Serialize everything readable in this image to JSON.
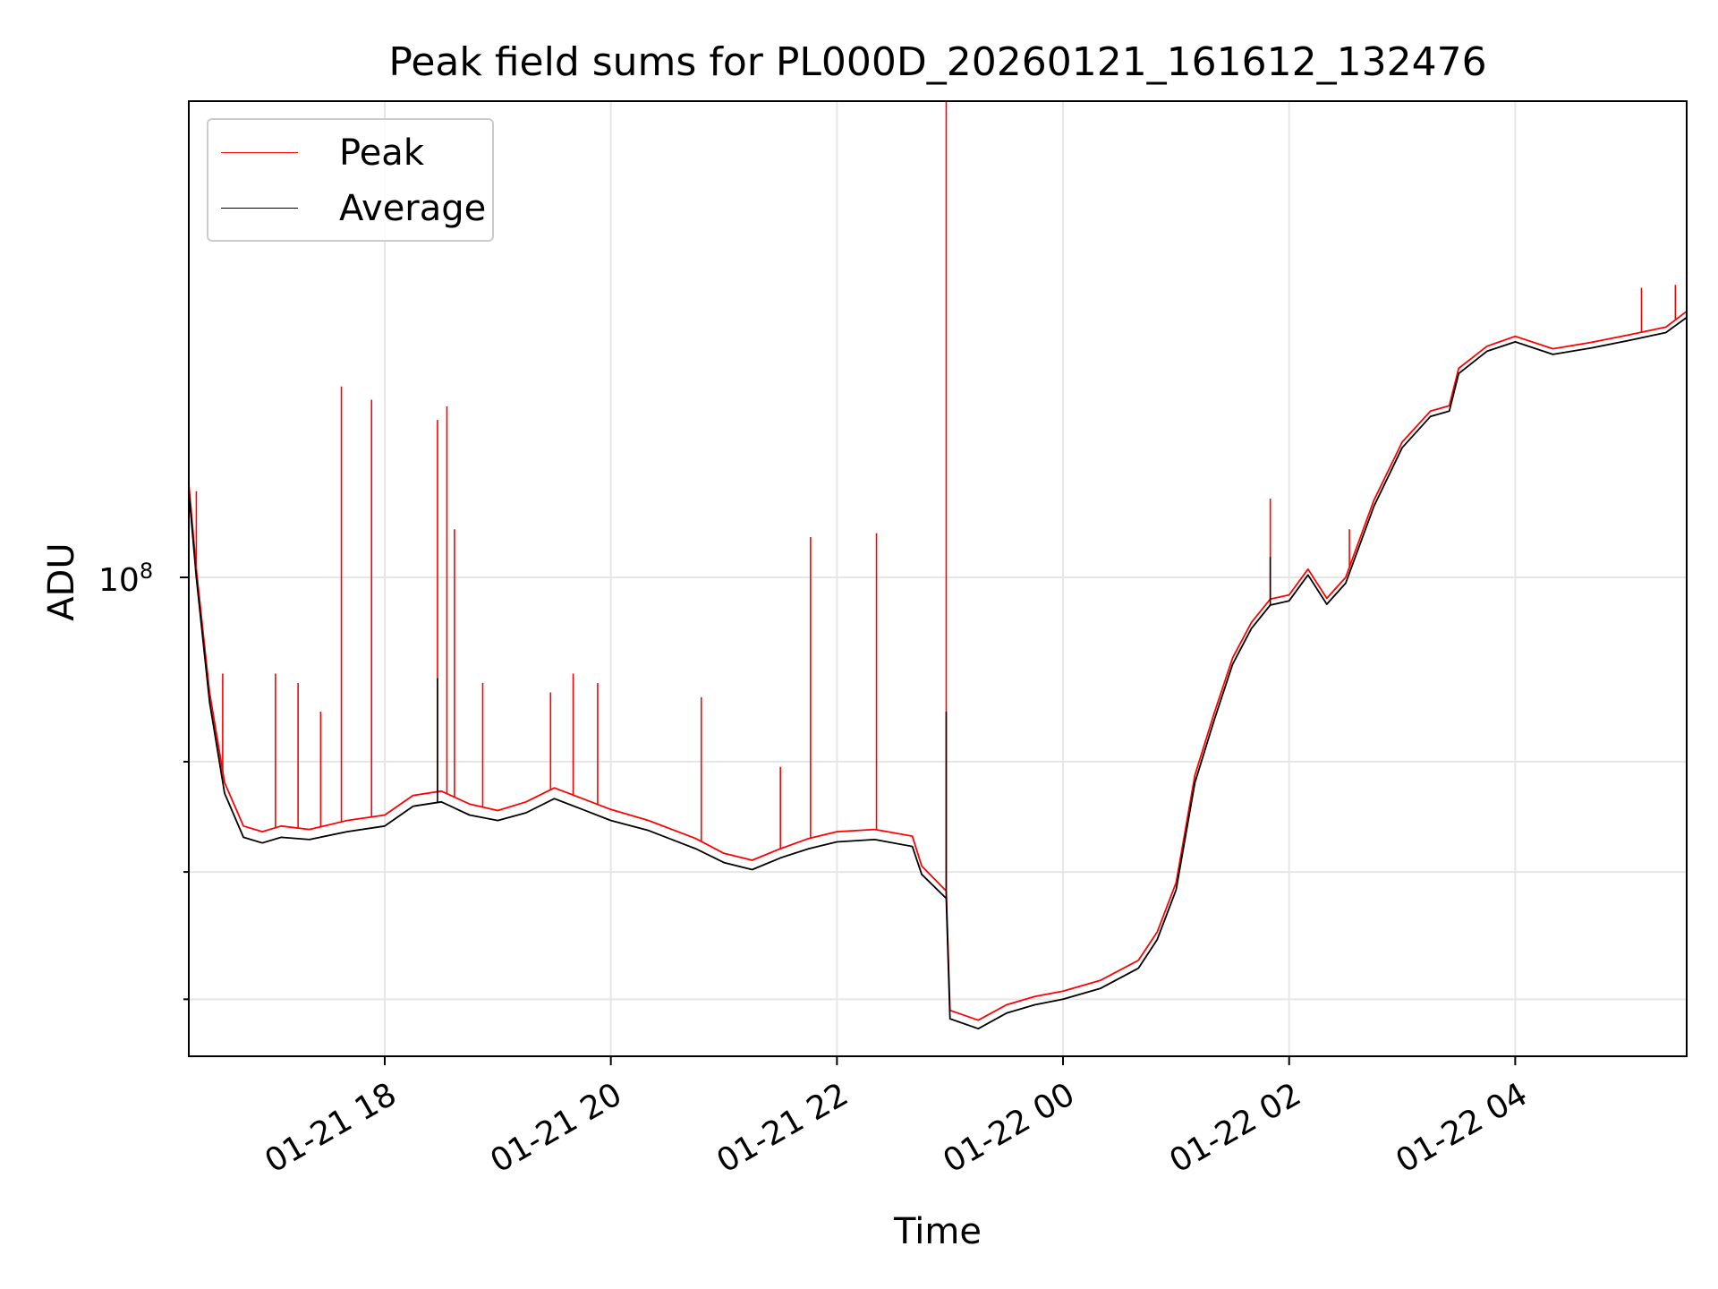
{
  "chart_data": {
    "type": "line",
    "title": "Peak field sums for PL000D_20260121_161612_132476",
    "xlabel": "Time",
    "ylabel": "ADU",
    "yscale": "log",
    "xlim": [
      "2026-01-21 16:16",
      "2026-01-22 05:31"
    ],
    "ylim": [
      56000000,
      178000000
    ],
    "x_ticks": [
      "01-21 18",
      "01-21 20",
      "01-21 22",
      "01-22 00",
      "01-22 02",
      "01-22 04"
    ],
    "y_ticks": [
      {
        "value": 100000000,
        "base": "10",
        "exponent": "8"
      }
    ],
    "grid": true,
    "legend_position": "upper left",
    "colors": {
      "Peak": "#ff0000",
      "Average": "#000000"
    },
    "series": [
      {
        "name": "Average",
        "x": [
          "2026-01-21 16:16",
          "2026-01-21 16:20",
          "2026-01-21 16:27",
          "2026-01-21 16:35",
          "2026-01-21 16:45",
          "2026-01-21 16:55",
          "2026-01-21 17:05",
          "2026-01-21 17:20",
          "2026-01-21 17:40",
          "2026-01-21 18:00",
          "2026-01-21 18:15",
          "2026-01-21 18:30",
          "2026-01-21 18:45",
          "2026-01-21 19:00",
          "2026-01-21 19:15",
          "2026-01-21 19:30",
          "2026-01-21 19:45",
          "2026-01-21 20:00",
          "2026-01-21 20:20",
          "2026-01-21 20:45",
          "2026-01-21 21:00",
          "2026-01-21 21:15",
          "2026-01-21 21:30",
          "2026-01-21 21:45",
          "2026-01-21 22:00",
          "2026-01-21 22:20",
          "2026-01-21 22:40",
          "2026-01-21 22:45",
          "2026-01-21 22:58",
          "2026-01-21 23:00",
          "2026-01-21 23:15",
          "2026-01-21 23:30",
          "2026-01-21 23:45",
          "2026-01-22 00:00",
          "2026-01-22 00:20",
          "2026-01-22 00:40",
          "2026-01-22 00:50",
          "2026-01-22 01:00",
          "2026-01-22 01:10",
          "2026-01-22 01:20",
          "2026-01-22 01:30",
          "2026-01-22 01:40",
          "2026-01-22 01:50",
          "2026-01-22 02:00",
          "2026-01-22 02:10",
          "2026-01-22 02:20",
          "2026-01-22 02:30",
          "2026-01-22 02:45",
          "2026-01-22 03:00",
          "2026-01-22 03:15",
          "2026-01-22 03:25",
          "2026-01-22 03:30",
          "2026-01-22 03:45",
          "2026-01-22 04:00",
          "2026-01-22 04:20",
          "2026-01-22 04:40",
          "2026-01-22 05:00",
          "2026-01-22 05:20",
          "2026-01-22 05:31"
        ],
        "values": [
          111000000,
          100000000,
          86000000,
          77000000,
          73000000,
          72500000,
          73000000,
          72800000,
          73500000,
          74000000,
          75800000,
          76200000,
          75000000,
          74500000,
          75200000,
          76500000,
          75500000,
          74500000,
          73600000,
          72000000,
          70800000,
          70200000,
          71200000,
          72000000,
          72600000,
          72800000,
          72200000,
          69800000,
          67800000,
          58600000,
          57900000,
          59000000,
          59600000,
          60000000,
          60800000,
          62300000,
          64500000,
          68500000,
          78000000,
          84000000,
          90000000,
          94000000,
          96700000,
          97200000,
          100300000,
          96800000,
          99300000,
          109000000,
          117000000,
          121500000,
          122300000,
          128000000,
          131500000,
          133000000,
          131000000,
          132000000,
          133200000,
          134500000,
          137000000
        ]
      },
      {
        "name": "Peak",
        "x": [
          "2026-01-21 16:16",
          "2026-01-21 16:20",
          "2026-01-21 16:27",
          "2026-01-21 16:35",
          "2026-01-21 16:45",
          "2026-01-21 16:55",
          "2026-01-21 17:05",
          "2026-01-21 17:20",
          "2026-01-21 17:40",
          "2026-01-21 18:00",
          "2026-01-21 18:15",
          "2026-01-21 18:30",
          "2026-01-21 18:45",
          "2026-01-21 19:00",
          "2026-01-21 19:15",
          "2026-01-21 19:30",
          "2026-01-21 19:45",
          "2026-01-21 20:00",
          "2026-01-21 20:20",
          "2026-01-21 20:45",
          "2026-01-21 21:00",
          "2026-01-21 21:15",
          "2026-01-21 21:30",
          "2026-01-21 21:45",
          "2026-01-21 22:00",
          "2026-01-21 22:20",
          "2026-01-21 22:40",
          "2026-01-21 22:45",
          "2026-01-21 22:58",
          "2026-01-21 23:00",
          "2026-01-21 23:15",
          "2026-01-21 23:30",
          "2026-01-21 23:45",
          "2026-01-22 00:00",
          "2026-01-22 00:20",
          "2026-01-22 00:40",
          "2026-01-22 00:50",
          "2026-01-22 01:00",
          "2026-01-22 01:10",
          "2026-01-22 01:20",
          "2026-01-22 01:30",
          "2026-01-22 01:40",
          "2026-01-22 01:50",
          "2026-01-22 02:00",
          "2026-01-22 02:10",
          "2026-01-22 02:20",
          "2026-01-22 02:30",
          "2026-01-22 02:45",
          "2026-01-22 03:00",
          "2026-01-22 03:15",
          "2026-01-22 03:25",
          "2026-01-22 03:30",
          "2026-01-22 03:45",
          "2026-01-22 04:00",
          "2026-01-22 04:20",
          "2026-01-22 04:40",
          "2026-01-22 05:00",
          "2026-01-22 05:20",
          "2026-01-22 05:31"
        ],
        "values": [
          112000000,
          101000000,
          87000000,
          78000000,
          74000000,
          73500000,
          74000000,
          73700000,
          74500000,
          75000000,
          76800000,
          77200000,
          76000000,
          75400000,
          76200000,
          77500000,
          76500000,
          75500000,
          74500000,
          72900000,
          71600000,
          71000000,
          72000000,
          72900000,
          73500000,
          73700000,
          73100000,
          70500000,
          68400000,
          59200000,
          58500000,
          59600000,
          60200000,
          60600000,
          61400000,
          62900000,
          65100000,
          69100000,
          78700000,
          84700000,
          90700000,
          94700000,
          97400000,
          97900000,
          101000000,
          97500000,
          100000000,
          109800000,
          117800000,
          122300000,
          123100000,
          128800000,
          132300000,
          133900000,
          131900000,
          132900000,
          134100000,
          135400000,
          138000000
        ]
      }
    ],
    "peak_spikes": [
      {
        "x": "2026-01-21 16:20",
        "value": 111000000
      },
      {
        "x": "2026-01-21 16:34",
        "value": 89000000
      },
      {
        "x": "2026-01-21 17:02",
        "value": 89000000
      },
      {
        "x": "2026-01-21 17:14",
        "value": 88000000
      },
      {
        "x": "2026-01-21 17:26",
        "value": 85000000
      },
      {
        "x": "2026-01-21 17:37",
        "value": 126000000
      },
      {
        "x": "2026-01-21 17:53",
        "value": 124000000
      },
      {
        "x": "2026-01-21 18:28",
        "value": 121000000
      },
      {
        "x": "2026-01-21 18:33",
        "value": 123000000
      },
      {
        "x": "2026-01-21 18:37",
        "value": 106000000
      },
      {
        "x": "2026-01-21 18:52",
        "value": 88000000
      },
      {
        "x": "2026-01-21 19:28",
        "value": 87000000
      },
      {
        "x": "2026-01-21 19:40",
        "value": 89000000
      },
      {
        "x": "2026-01-21 19:53",
        "value": 88000000
      },
      {
        "x": "2026-01-21 20:48",
        "value": 86500000
      },
      {
        "x": "2026-01-21 21:30",
        "value": 79500000
      },
      {
        "x": "2026-01-21 21:46",
        "value": 105000000
      },
      {
        "x": "2026-01-21 22:21",
        "value": 105500000
      },
      {
        "x": "2026-01-21 22:58",
        "value": 178000000
      },
      {
        "x": "2026-01-22 01:50",
        "value": 110000000
      },
      {
        "x": "2026-01-22 02:32",
        "value": 106000000
      },
      {
        "x": "2026-01-22 05:07",
        "value": 142000000
      },
      {
        "x": "2026-01-22 05:25",
        "value": 142500000
      }
    ],
    "average_spikes": [
      {
        "x": "2026-01-21 18:28",
        "value": 88500000
      },
      {
        "x": "2026-01-21 22:58",
        "value": 85000000
      },
      {
        "x": "2026-01-22 01:50",
        "value": 102500000
      }
    ]
  }
}
